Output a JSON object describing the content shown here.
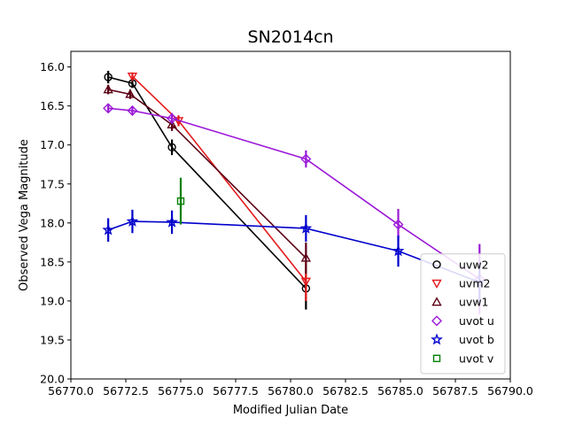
{
  "chart_data": {
    "type": "scatter",
    "title": "SN2014cn",
    "xlabel": "Modified Julian Date",
    "ylabel": "Observed Vega Magnitude",
    "xlim": [
      56770.0,
      56790.0
    ],
    "ylim": [
      20.0,
      15.8
    ],
    "y_inverted": true,
    "grid": false,
    "legend_position": "lower-right",
    "x_ticks": [
      "56770.0",
      "56772.5",
      "56775.0",
      "56777.5",
      "56780.0",
      "56782.5",
      "56785.0",
      "56787.5",
      "56790.0"
    ],
    "y_ticks": [
      "16.0",
      "16.5",
      "17.0",
      "17.5",
      "18.0",
      "18.5",
      "19.0",
      "19.5",
      "20.0"
    ],
    "series": [
      {
        "name": "uvw2",
        "color": "#000000",
        "marker": "circle",
        "points": [
          {
            "x": 56771.7,
            "y": 16.13,
            "err": 0.08
          },
          {
            "x": 56772.8,
            "y": 16.21,
            "err": 0.06
          },
          {
            "x": 56774.6,
            "y": 17.03,
            "err": 0.1
          },
          {
            "x": 56780.7,
            "y": 18.84,
            "err": 0.27
          }
        ]
      },
      {
        "name": "uvm2",
        "color": "#e31a1c",
        "marker": "triangle-down",
        "points": [
          {
            "x": 56772.8,
            "y": 16.12,
            "err": 0.05
          },
          {
            "x": 56774.9,
            "y": 16.69,
            "err": 0.07
          },
          {
            "x": 56780.7,
            "y": 18.75,
            "err": 0.25
          }
        ]
      },
      {
        "name": "uvw1",
        "color": "#5c0015",
        "marker": "triangle-up",
        "points": [
          {
            "x": 56771.7,
            "y": 16.29,
            "err": 0.06
          },
          {
            "x": 56772.7,
            "y": 16.35,
            "err": 0.06
          },
          {
            "x": 56774.6,
            "y": 16.74,
            "err": 0.08
          },
          {
            "x": 56780.7,
            "y": 18.45,
            "err": 0.2
          }
        ]
      },
      {
        "name": "uvot u",
        "color": "#9b19d8",
        "marker": "diamond",
        "points": [
          {
            "x": 56771.7,
            "y": 16.53,
            "err": 0.05
          },
          {
            "x": 56772.8,
            "y": 16.56,
            "err": 0.06
          },
          {
            "x": 56774.6,
            "y": 16.66,
            "err": 0.07
          },
          {
            "x": 56780.7,
            "y": 17.18,
            "err": 0.11
          },
          {
            "x": 56784.9,
            "y": 18.02,
            "err": 0.2
          },
          {
            "x": 56788.6,
            "y": 18.72,
            "err": 0.45
          }
        ]
      },
      {
        "name": "uvot b",
        "color": "#0000cc",
        "marker": "star",
        "points": [
          {
            "x": 56771.7,
            "y": 18.09,
            "err": 0.15
          },
          {
            "x": 56772.8,
            "y": 17.98,
            "err": 0.15
          },
          {
            "x": 56774.6,
            "y": 17.99,
            "err": 0.15
          },
          {
            "x": 56780.7,
            "y": 18.07,
            "err": 0.17
          },
          {
            "x": 56784.9,
            "y": 18.36,
            "err": 0.2
          },
          {
            "x": 56788.6,
            "y": 18.76,
            "err": 0.25
          }
        ]
      },
      {
        "name": "uvot v",
        "color": "#008000",
        "marker": "square",
        "points": [
          {
            "x": 56775.0,
            "y": 17.72,
            "err": 0.3
          }
        ]
      }
    ]
  }
}
